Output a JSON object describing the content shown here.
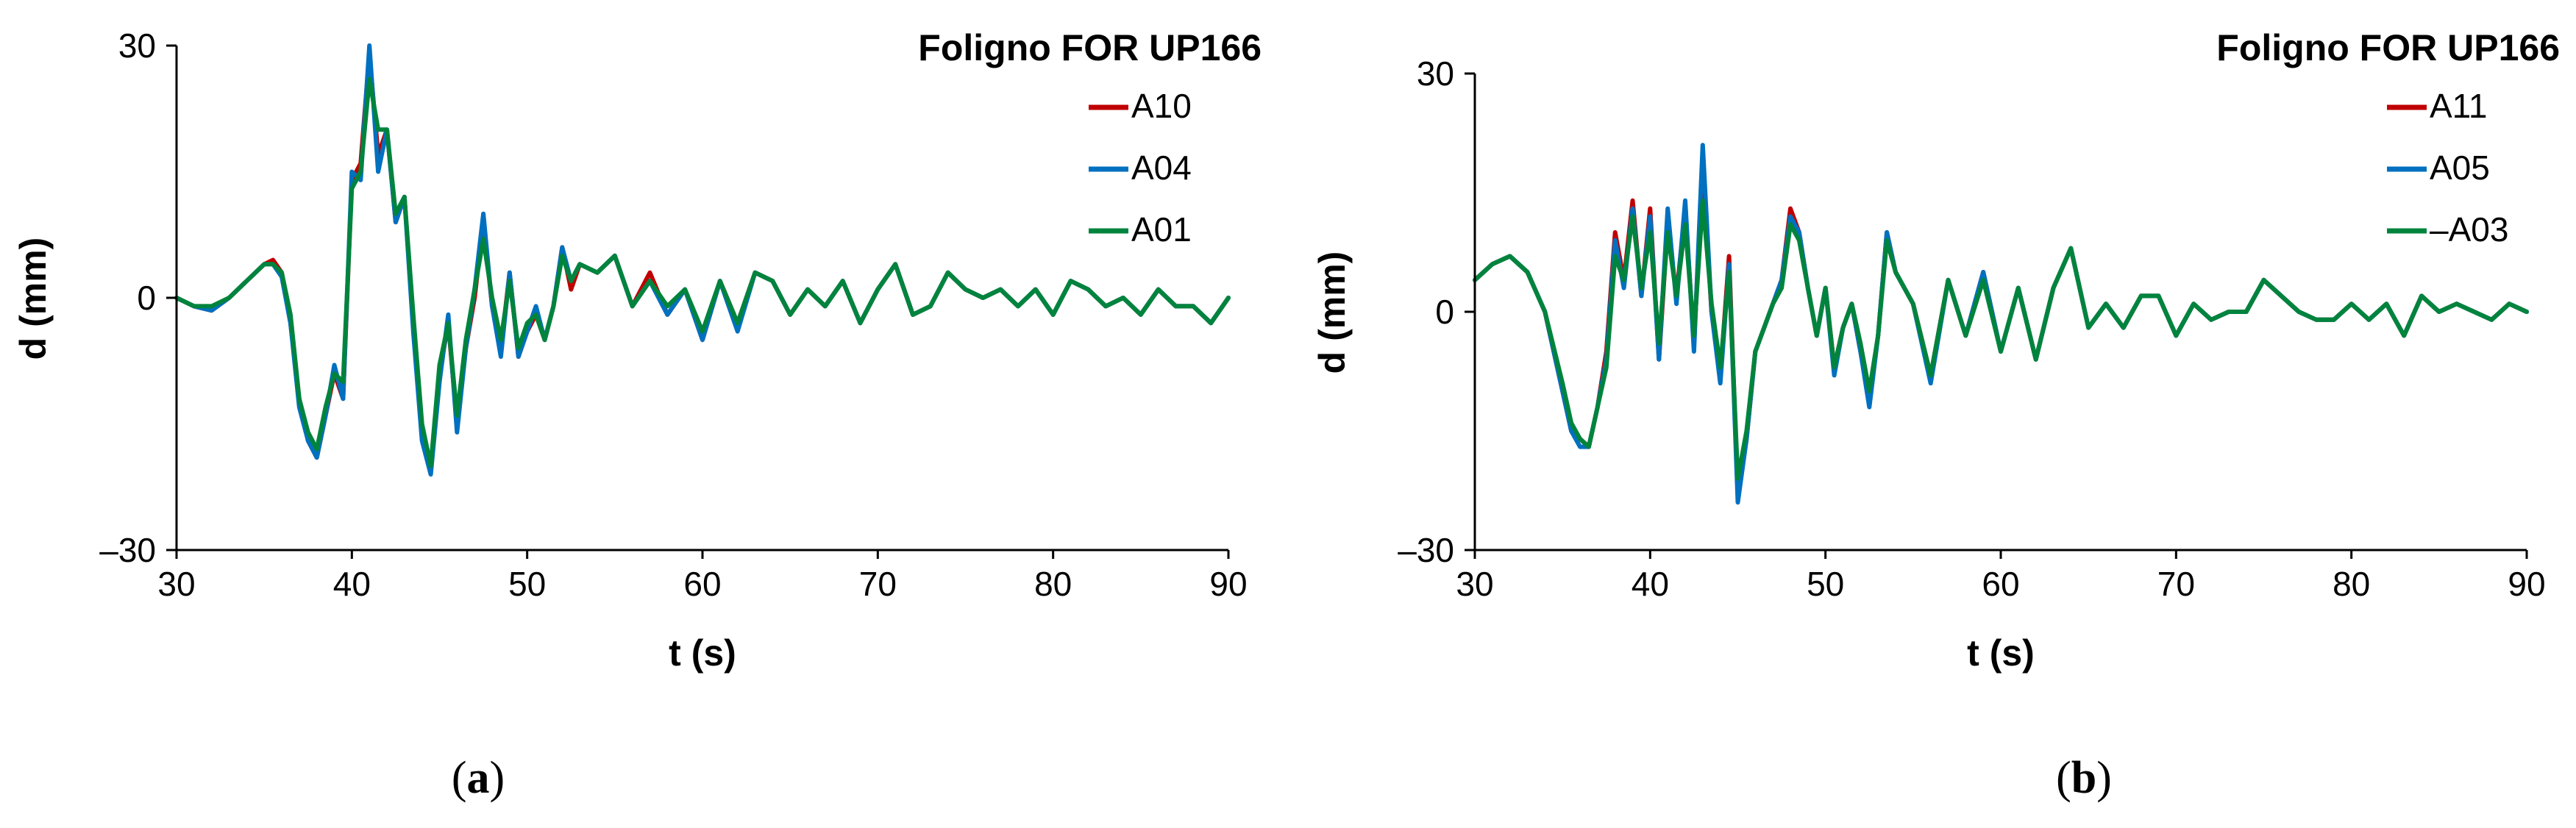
{
  "colors": {
    "A10": "#c00000",
    "A04": "#0070c0",
    "A01": "#00843d"
  },
  "chart_data": [
    {
      "type": "line",
      "panel_caption": "a",
      "title": "Foligno FOR UP166",
      "xlabel": "t (s)",
      "ylabel": "d (mm)",
      "xlim": [
        30,
        90
      ],
      "ylim": [
        -30,
        30
      ],
      "x_ticks": [
        30,
        40,
        50,
        60,
        70,
        80,
        90
      ],
      "y_ticks": [
        -30,
        0,
        30
      ],
      "y_tick_labels": [
        "–30",
        "0",
        "30"
      ],
      "x_tick_labels": [
        "30",
        "40",
        "50",
        "60",
        "70",
        "80",
        "90"
      ],
      "legend_position": "top-right",
      "series": [
        {
          "name": "A10",
          "color": "#c00000",
          "x": [
            30,
            31,
            32,
            33,
            34,
            35,
            35.5,
            36,
            36.5,
            37,
            37.5,
            38,
            38.5,
            39,
            39.5,
            40,
            40.5,
            41,
            41.5,
            42,
            42.5,
            43,
            43.5,
            44,
            44.5,
            45,
            45.5,
            46,
            46.5,
            47,
            47.5,
            48,
            48.5,
            49,
            49.5,
            50,
            50.5,
            51,
            51.5,
            52,
            52.5,
            53,
            54,
            55,
            56,
            57,
            58,
            59,
            60,
            61,
            62,
            63,
            64,
            65,
            66,
            67,
            68,
            69,
            70,
            71,
            72,
            73,
            74,
            75,
            76,
            77,
            78,
            79,
            80,
            81,
            82,
            83,
            84,
            85,
            86,
            87,
            88,
            89,
            90
          ],
          "y": [
            0,
            -1,
            -1.5,
            0,
            2,
            4,
            4.5,
            3,
            -3,
            -12,
            -17,
            -19,
            -14,
            -9,
            -12,
            14,
            16,
            29,
            17,
            20,
            9,
            12,
            -3,
            -16,
            -20,
            -9,
            -3,
            -15,
            -6,
            0,
            9,
            -1,
            -6,
            3,
            -7,
            -4,
            -2,
            -5,
            -1,
            6,
            1,
            4,
            3,
            5,
            -1,
            3,
            -2,
            1,
            -5,
            2,
            -3,
            3,
            2,
            -2,
            1,
            -1,
            2,
            -3,
            1,
            4,
            -2,
            -1,
            3,
            1,
            0,
            1,
            -1,
            1,
            -2,
            2,
            1,
            -1,
            0,
            -2,
            1,
            -1,
            -1,
            -3,
            0
          ]
        },
        {
          "name": "A04",
          "color": "#0070c0",
          "x": [
            30,
            31,
            32,
            33,
            34,
            35,
            35.5,
            36,
            36.5,
            37,
            37.5,
            38,
            38.5,
            39,
            39.5,
            40,
            40.5,
            41,
            41.5,
            42,
            42.5,
            43,
            43.5,
            44,
            44.5,
            45,
            45.5,
            46,
            46.5,
            47,
            47.5,
            48,
            48.5,
            49,
            49.5,
            50,
            50.5,
            51,
            51.5,
            52,
            52.5,
            53,
            54,
            55,
            56,
            57,
            58,
            59,
            60,
            61,
            62,
            63,
            64,
            65,
            66,
            67,
            68,
            69,
            70,
            71,
            72,
            73,
            74,
            75,
            76,
            77,
            78,
            79,
            80,
            81,
            82,
            83,
            84,
            85,
            86,
            87,
            88,
            89,
            90
          ],
          "y": [
            0,
            -1,
            -1.5,
            0,
            2,
            4,
            4,
            2.5,
            -3,
            -13,
            -17,
            -19,
            -14,
            -8,
            -12,
            15,
            14,
            30,
            15,
            20,
            9,
            12,
            -4,
            -17,
            -21,
            -10,
            -2,
            -16,
            -6,
            1,
            10,
            -1,
            -7,
            3,
            -7,
            -4,
            -1,
            -5,
            -1,
            6,
            2,
            4,
            3,
            5,
            -1,
            2,
            -2,
            1,
            -5,
            2,
            -4,
            3,
            2,
            -2,
            1,
            -1,
            2,
            -3,
            1,
            4,
            -2,
            -1,
            3,
            1,
            0,
            1,
            -1,
            1,
            -2,
            2,
            1,
            -1,
            0,
            -2,
            1,
            -1,
            -1,
            -3,
            0
          ]
        },
        {
          "name": "A01",
          "color": "#00843d",
          "x": [
            30,
            31,
            32,
            33,
            34,
            35,
            35.5,
            36,
            36.5,
            37,
            37.5,
            38,
            38.5,
            39,
            39.5,
            40,
            40.5,
            41,
            41.5,
            42,
            42.5,
            43,
            43.5,
            44,
            44.5,
            45,
            45.5,
            46,
            46.5,
            47,
            47.5,
            48,
            48.5,
            49,
            49.5,
            50,
            50.5,
            51,
            51.5,
            52,
            52.5,
            53,
            54,
            55,
            56,
            57,
            58,
            59,
            60,
            61,
            62,
            63,
            64,
            65,
            66,
            67,
            68,
            69,
            70,
            71,
            72,
            73,
            74,
            75,
            76,
            77,
            78,
            79,
            80,
            81,
            82,
            83,
            84,
            85,
            86,
            87,
            88,
            89,
            90
          ],
          "y": [
            0,
            -1,
            -1,
            0,
            2,
            4,
            4,
            3,
            -2,
            -12,
            -16,
            -18,
            -13,
            -9,
            -10,
            13,
            15,
            26,
            20,
            20,
            10,
            12,
            -2,
            -15,
            -20,
            -8,
            -3,
            -14,
            -5,
            1,
            7,
            0,
            -5,
            2,
            -6,
            -3,
            -2,
            -5,
            -1,
            5,
            2,
            4,
            3,
            5,
            -1,
            2,
            -1,
            1,
            -4,
            2,
            -3,
            3,
            2,
            -2,
            1,
            -1,
            2,
            -3,
            1,
            4,
            -2,
            -1,
            3,
            1,
            0,
            1,
            -1,
            1,
            -2,
            2,
            1,
            -1,
            0,
            -2,
            1,
            -1,
            -1,
            -3,
            0
          ]
        }
      ]
    },
    {
      "type": "line",
      "panel_caption": "b",
      "title": "Foligno FOR UP166",
      "xlabel": "t (s)",
      "ylabel": "d (mm)",
      "xlim": [
        30,
        90
      ],
      "ylim": [
        -30,
        30
      ],
      "x_ticks": [
        30,
        40,
        50,
        60,
        70,
        80,
        90
      ],
      "y_ticks": [
        -30,
        0,
        30
      ],
      "y_tick_labels": [
        "–30",
        "0",
        "30"
      ],
      "x_tick_labels": [
        "30",
        "40",
        "50",
        "60",
        "70",
        "80",
        "90"
      ],
      "legend_position": "top-right",
      "series": [
        {
          "name": "A11",
          "color": "#c00000",
          "x": [
            30,
            31,
            32,
            33,
            34,
            35,
            35.5,
            36,
            36.5,
            37,
            37.5,
            38,
            38.5,
            39,
            39.5,
            40,
            40.5,
            41,
            41.5,
            42,
            42.5,
            43,
            43.5,
            44,
            44.5,
            45,
            45.5,
            46,
            46.5,
            47,
            47.5,
            48,
            48.5,
            49,
            49.5,
            50,
            50.5,
            51,
            51.5,
            52,
            52.5,
            53,
            53.5,
            54,
            55,
            56,
            57,
            58,
            59,
            60,
            61,
            62,
            63,
            64,
            65,
            66,
            67,
            68,
            69,
            70,
            71,
            72,
            73,
            74,
            75,
            76,
            77,
            78,
            79,
            80,
            81,
            82,
            83,
            84,
            85,
            86,
            87,
            88,
            89,
            90
          ],
          "y": [
            4,
            6,
            7,
            5,
            0,
            -10,
            -15,
            -16,
            -17,
            -12,
            -5,
            10,
            4,
            14,
            2,
            13,
            -6,
            11,
            2,
            13,
            -4,
            18,
            0,
            -8,
            7,
            -23,
            -16,
            -5,
            -2,
            1,
            4,
            13,
            10,
            3,
            -3,
            3,
            -7,
            -2,
            1,
            -5,
            -11,
            -3,
            10,
            5,
            1,
            -8,
            4,
            -3,
            5,
            -5,
            3,
            -6,
            3,
            8,
            -2,
            1,
            -2,
            2,
            2,
            -3,
            1,
            -1,
            0,
            0,
            4,
            2,
            0,
            -1,
            -1,
            1,
            -1,
            1,
            -3,
            2,
            0,
            1,
            0,
            -1,
            1,
            0
          ]
        },
        {
          "name": "A05",
          "color": "#0070c0",
          "x": [
            30,
            31,
            32,
            33,
            34,
            35,
            35.5,
            36,
            36.5,
            37,
            37.5,
            38,
            38.5,
            39,
            39.5,
            40,
            40.5,
            41,
            41.5,
            42,
            42.5,
            43,
            43.5,
            44,
            44.5,
            45,
            45.5,
            46,
            46.5,
            47,
            47.5,
            48,
            48.5,
            49,
            49.5,
            50,
            50.5,
            51,
            51.5,
            52,
            52.5,
            53,
            53.5,
            54,
            55,
            56,
            57,
            58,
            59,
            60,
            61,
            62,
            63,
            64,
            65,
            66,
            67,
            68,
            69,
            70,
            71,
            72,
            73,
            74,
            75,
            76,
            77,
            78,
            79,
            80,
            81,
            82,
            83,
            84,
            85,
            86,
            87,
            88,
            89,
            90
          ],
          "y": [
            4,
            6,
            7,
            5,
            0,
            -10,
            -15,
            -17,
            -17,
            -12,
            -6,
            9,
            3,
            13,
            2,
            12,
            -6,
            13,
            1,
            14,
            -5,
            21,
            0,
            -9,
            6,
            -24,
            -16,
            -5,
            -2,
            1,
            4,
            12,
            10,
            3,
            -3,
            3,
            -8,
            -2,
            1,
            -5,
            -12,
            -3,
            10,
            5,
            1,
            -9,
            4,
            -3,
            5,
            -5,
            3,
            -6,
            3,
            8,
            -2,
            1,
            -2,
            2,
            2,
            -3,
            1,
            -1,
            0,
            0,
            4,
            2,
            0,
            -1,
            -1,
            1,
            -1,
            1,
            -3,
            2,
            0,
            1,
            0,
            -1,
            1,
            0
          ]
        },
        {
          "name": "–A03",
          "color": "#00843d",
          "x": [
            30,
            31,
            32,
            33,
            34,
            35,
            35.5,
            36,
            36.5,
            37,
            37.5,
            38,
            38.5,
            39,
            39.5,
            40,
            40.5,
            41,
            41.5,
            42,
            42.5,
            43,
            43.5,
            44,
            44.5,
            45,
            45.5,
            46,
            46.5,
            47,
            47.5,
            48,
            48.5,
            49,
            49.5,
            50,
            50.5,
            51,
            51.5,
            52,
            52.5,
            53,
            53.5,
            54,
            55,
            56,
            57,
            58,
            59,
            60,
            61,
            62,
            63,
            64,
            65,
            66,
            67,
            68,
            69,
            70,
            71,
            72,
            73,
            74,
            75,
            76,
            77,
            78,
            79,
            80,
            81,
            82,
            83,
            84,
            85,
            86,
            87,
            88,
            89,
            90
          ],
          "y": [
            4,
            6,
            7,
            5,
            0,
            -9,
            -14,
            -16,
            -17,
            -12,
            -7,
            7,
            4,
            12,
            3,
            10,
            -4,
            10,
            2,
            11,
            -3,
            14,
            1,
            -7,
            5,
            -21,
            -15,
            -5,
            -2,
            1,
            3,
            11,
            9,
            3,
            -3,
            3,
            -7,
            -2,
            1,
            -4,
            -10,
            -3,
            9,
            5,
            1,
            -8,
            4,
            -3,
            4,
            -5,
            3,
            -6,
            3,
            8,
            -2,
            1,
            -2,
            2,
            2,
            -3,
            1,
            -1,
            0,
            0,
            4,
            2,
            0,
            -1,
            -1,
            1,
            -1,
            1,
            -3,
            2,
            0,
            1,
            0,
            -1,
            1,
            0
          ]
        }
      ]
    }
  ]
}
